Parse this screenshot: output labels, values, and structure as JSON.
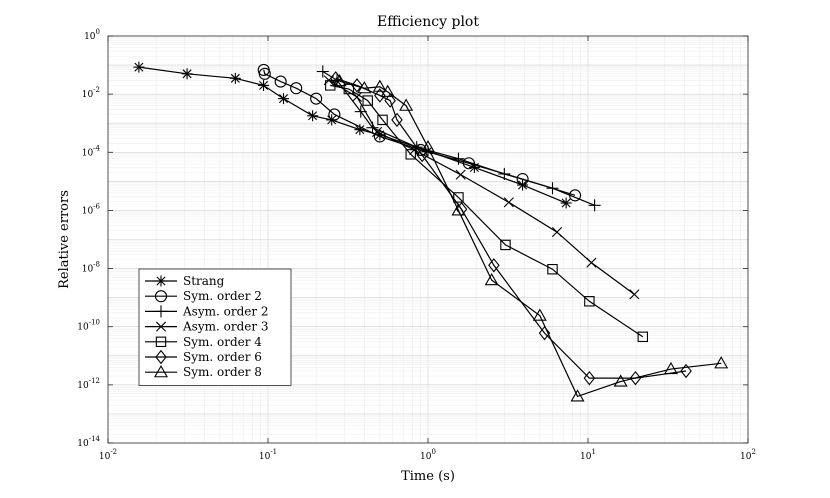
{
  "chart_data": {
    "type": "line",
    "title": "Efficiency plot",
    "xlabel": "Time (s)",
    "ylabel": "Relative errors",
    "xscale": "log",
    "yscale": "log",
    "xlim": [
      0.01,
      100
    ],
    "ylim": [
      1e-14,
      1
    ],
    "grid": true,
    "legend_position": "lower-left",
    "x_ticks": [
      {
        "value": 0.01,
        "base": "10",
        "exp": "-2"
      },
      {
        "value": 0.1,
        "base": "10",
        "exp": "-1"
      },
      {
        "value": 1,
        "base": "10",
        "exp": "0"
      },
      {
        "value": 10,
        "base": "10",
        "exp": "1"
      },
      {
        "value": 100,
        "base": "10",
        "exp": "2"
      }
    ],
    "y_ticks": [
      {
        "value": 1e-14,
        "base": "10",
        "exp": "-14"
      },
      {
        "value": 1e-12,
        "base": "10",
        "exp": "-12"
      },
      {
        "value": 1e-10,
        "base": "10",
        "exp": "-10"
      },
      {
        "value": 1e-08,
        "base": "10",
        "exp": "-8"
      },
      {
        "value": 1e-06,
        "base": "10",
        "exp": "-6"
      },
      {
        "value": 0.0001,
        "base": "10",
        "exp": "-4"
      },
      {
        "value": 0.01,
        "base": "10",
        "exp": "-2"
      },
      {
        "value": 1,
        "base": "10",
        "exp": "0"
      }
    ],
    "series": [
      {
        "name": "Strang",
        "marker": "star",
        "x": [
          0.0156,
          0.0312,
          0.0625,
          0.0938,
          0.125,
          0.19,
          0.25,
          0.375,
          0.5,
          1.0,
          1.95,
          3.9,
          7.3
        ],
        "y": [
          0.085,
          0.05,
          0.035,
          0.02,
          0.007,
          0.0018,
          0.0013,
          0.0006,
          0.0004,
          0.00011,
          3e-05,
          7.5e-06,
          1.8e-06
        ]
      },
      {
        "name": "Sym. order 2",
        "marker": "circle",
        "x": [
          0.094,
          0.0955,
          0.12,
          0.15,
          0.2,
          0.26,
          0.5,
          0.9,
          1.8,
          3.9,
          8.3
        ],
        "y": [
          0.068,
          0.05,
          0.027,
          0.016,
          0.007,
          0.002,
          0.00035,
          0.00012,
          4.2e-05,
          1.2e-05,
          3.3e-06
        ]
      },
      {
        "name": "Asym. order 2",
        "marker": "plus",
        "x": [
          0.22,
          0.27,
          0.38,
          0.45,
          0.85,
          1.55,
          3.0,
          6.0,
          11.0
        ],
        "y": [
          0.06,
          0.03,
          0.0025,
          0.0007,
          0.00015,
          6e-05,
          1.8e-05,
          5.8e-06,
          1.5e-06
        ]
      },
      {
        "name": "Asym. order 3",
        "marker": "x",
        "x": [
          0.24,
          0.36,
          0.48,
          0.82,
          1.6,
          3.2,
          6.4,
          10.5,
          19.5
        ],
        "y": [
          0.03,
          0.008,
          0.0005,
          0.00012,
          1.7e-05,
          1.9e-06,
          1.8e-07,
          1.6e-08,
          1.3e-09
        ]
      },
      {
        "name": "Sym. order 4",
        "marker": "square",
        "x": [
          0.245,
          0.32,
          0.42,
          0.52,
          0.78,
          1.55,
          3.05,
          6.0,
          10.2,
          22.0
        ],
        "y": [
          0.02,
          0.015,
          0.006,
          0.0013,
          8.5e-05,
          2.8e-06,
          6.5e-08,
          9.5e-09,
          7.5e-10,
          4.5e-11
        ]
      },
      {
        "name": "Sym. order 6",
        "marker": "diamond",
        "x": [
          0.265,
          0.36,
          0.5,
          0.58,
          0.64,
          0.92,
          1.62,
          2.58,
          5.35,
          10.2,
          19.8,
          41.0
        ],
        "y": [
          0.035,
          0.02,
          0.009,
          0.006,
          0.0013,
          8e-05,
          1.1e-06,
          1.3e-08,
          6e-11,
          1.7e-12,
          1.7e-12,
          3e-12
        ]
      },
      {
        "name": "Sym. order 8",
        "marker": "triangle",
        "x": [
          0.28,
          0.4,
          0.5,
          0.56,
          0.73,
          1.0,
          1.55,
          2.5,
          5.0,
          8.6,
          16.0,
          33.0,
          68.0
        ],
        "y": [
          0.028,
          0.016,
          0.018,
          0.012,
          0.004,
          0.00015,
          1e-06,
          4e-09,
          2.4e-10,
          4e-13,
          1.3e-12,
          3.5e-12,
          5.5e-12
        ]
      }
    ]
  }
}
